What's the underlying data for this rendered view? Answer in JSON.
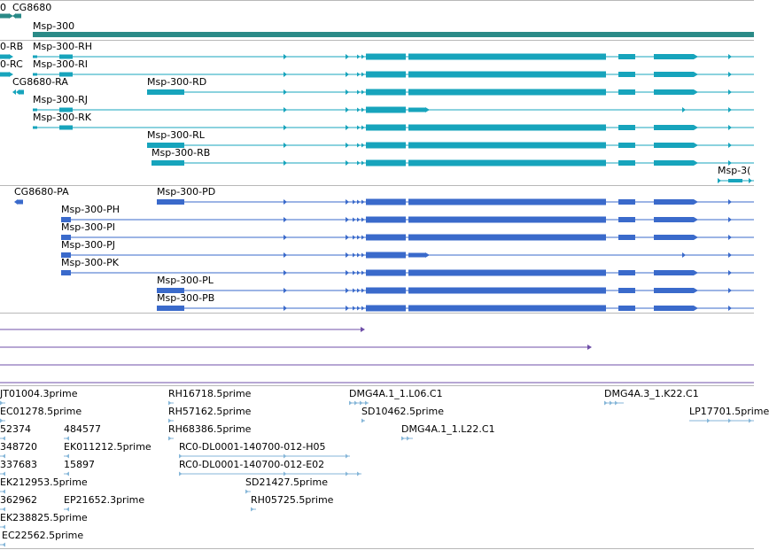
{
  "colors": {
    "background": "#ffffff",
    "separator": "#b8b8b8",
    "gene_track": "#2a8a87",
    "mrna_track": "#17a4bc",
    "protein_track": "#3a6acb",
    "alignment_track": "#6f4fa8",
    "est_track": "#85b6d8",
    "label": "#000000"
  },
  "gene_track": {
    "labels": [
      "0",
      "CG8680",
      "Msp-300"
    ]
  },
  "mrna_track": {
    "labels": [
      "0-RB",
      "Msp-300-RH",
      "0-RC",
      "Msp-300-RI",
      "CG8680-RA",
      "Msp-300-RD",
      "Msp-300-RJ",
      "Msp-300-RK",
      "Msp-300-RL",
      "Msp-300-RB",
      "Msp-3("
    ]
  },
  "protein_track": {
    "labels": [
      "CG8680-PA",
      "Msp-300-PD",
      "Msp-300-PH",
      "Msp-300-PI",
      "Msp-300-PJ",
      "Msp-300-PK",
      "Msp-300-PL",
      "Msp-300-PB"
    ]
  },
  "est_track": {
    "labels": [
      "JT01004.3prime",
      "RH16718.5prime",
      "DMG4A.1_1.L06.C1",
      "DMG4A.3_1.K22.C1",
      "EC01278.5prime",
      "RH57162.5prime",
      "SD10462.5prime",
      "LP17701.5prime",
      "52374",
      "484577",
      "RH68386.5prime",
      "DMG4A.1_1.L22.C1",
      "348720",
      "EK011212.5prime",
      "RC0-DL0001-140700-012-H05",
      "337683",
      "15897",
      "RC0-DL0001-140700-012-E02",
      "EK212953.5prime",
      "SD21427.5prime",
      "362962",
      "EP21652.3prime",
      "RH05725.5prime",
      "EK238825.5prime",
      "EC22562.5prime"
    ]
  }
}
